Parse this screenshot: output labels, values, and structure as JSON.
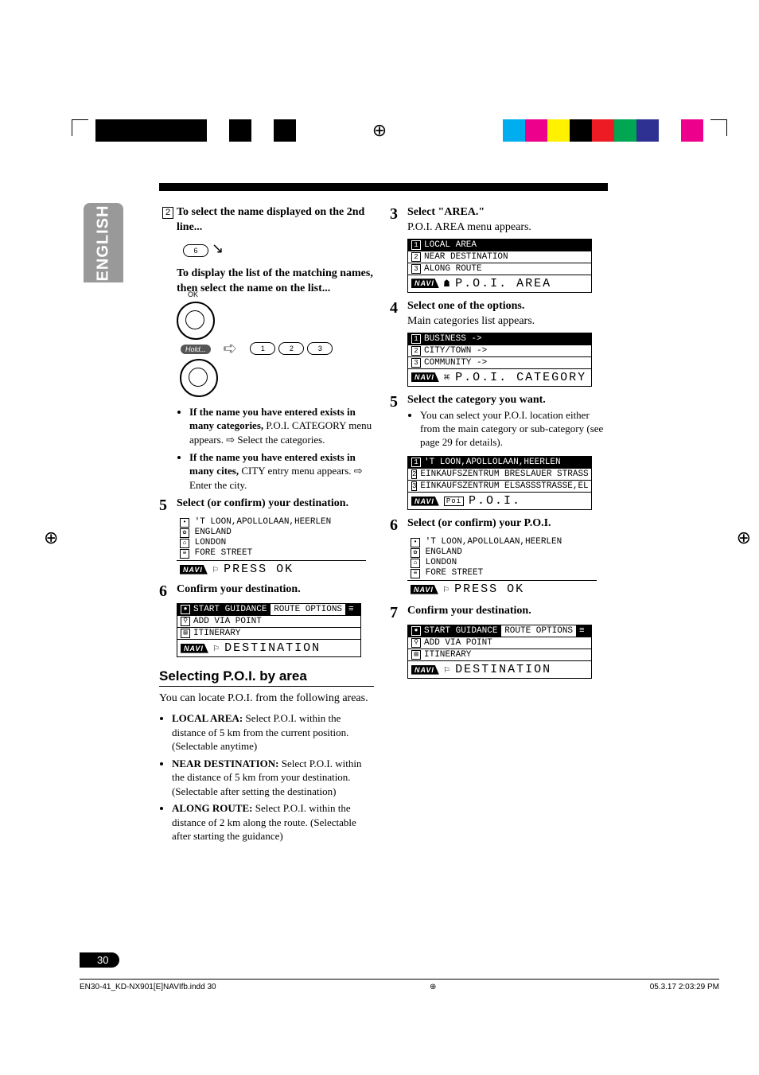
{
  "sideTab": "ENGLISH",
  "pageNumber": "30",
  "footer": {
    "file": "EN30-41_KD-NX901[E]NAVIfb.indd   30",
    "date": "05.3.17   2:03:29 PM"
  },
  "regColorsLeft": [
    "#000000",
    "#000000",
    "#000000",
    "#000000",
    "#000000",
    "#ffffff",
    "#000000",
    "#ffffff",
    "#000000"
  ],
  "regColorsRight": [
    "#00aeef",
    "#ec008c",
    "#fff200",
    "#000000",
    "#ed1c24",
    "#00a651",
    "#2e3192",
    "#ffffff",
    "#ec008c"
  ],
  "left": {
    "boxNum": "2",
    "line2a": "To select the name displayed on the 2nd line...",
    "btn6": "6",
    "line2b": "To display the list of the matching names, then select the name on the list...",
    "knobOK": "OK",
    "hold": "Hold...",
    "btn1": "1",
    "btn2": "2",
    "btn3": "3",
    "bullet1a": "If the name you have entered exists in many categories,",
    "bullet1b": " P.O.I. CATEGORY menu appears. ",
    "bullet1c": " Select the categories.",
    "bullet2a": "If the name you have entered exists in many cites,",
    "bullet2b": " CITY entry menu appears. ",
    "bullet2c": " Enter the city.",
    "step5": "Select (or confirm) your destination.",
    "lcd5": {
      "r1": "'T LOON,APOLLOLAAN,HEERLEN",
      "r2": "ENGLAND",
      "r3": "LONDON",
      "r4": "FORE STREET",
      "footer": "PRESS OK"
    },
    "step6": "Confirm your destination.",
    "dest": {
      "r1a": "START GUIDANCE",
      "r1b": "ROUTE OPTIONS",
      "r2": "ADD VIA POINT",
      "r3": "ITINERARY",
      "footer": "DESTINATION"
    },
    "sectionHeading": "Selecting P.O.I. by area",
    "sectionIntro": "You can locate P.O.I. from the following areas.",
    "areaBullets": {
      "b1t": "LOCAL AREA:",
      "b1": " Select P.O.I. within the distance of 5 km from the current position. (Selectable anytime)",
      "b2t": "NEAR DESTINATION:",
      "b2": " Select P.O.I. within the distance of 5 km from your destination. (Selectable after setting the destination)",
      "b3t": "ALONG ROUTE:",
      "b3": " Select P.O.I. within the distance of 2 km along the route. (Selectable after starting the guidance)"
    }
  },
  "right": {
    "step3a": "Select \"AREA.\"",
    "step3b": "P.O.I. AREA menu appears.",
    "lcd3": {
      "r1": "LOCAL AREA",
      "r2": "NEAR DESTINATION",
      "r3": "ALONG ROUTE",
      "footer": "P.O.I. AREA"
    },
    "step4a": "Select one of the options.",
    "step4b": "Main categories list appears.",
    "lcd4": {
      "r1": "BUSINESS ->",
      "r2": "CITY/TOWN ->",
      "r3": "COMMUNITY ->",
      "footer": "P.O.I. CATEGORY"
    },
    "step5a": "Select the category you want.",
    "step5b": "You can select your P.O.I. location either from the main category or sub-category (see page 29 for details).",
    "lcd5": {
      "r1": "'T LOON,APOLLOLAAN,HEERLEN",
      "r2": "EINKAUFSZENTRUM BRESLAUER STRASS",
      "r3": "EINKAUFSZENTRUM ELSASSSTRASSE,EL",
      "footer": "P.O.I."
    },
    "step6": "Select (or confirm) your P.O.I.",
    "lcd6": {
      "r1": "'T LOON,APOLLOLAAN,HEERLEN",
      "r2": "ENGLAND",
      "r3": "LONDON",
      "r4": "FORE STREET",
      "footer": "PRESS OK"
    },
    "step7": "Confirm your destination.",
    "dest": {
      "r1a": "START GUIDANCE",
      "r1b": "ROUTE OPTIONS",
      "r2": "ADD VIA POINT",
      "r3": "ITINERARY",
      "footer": "DESTINATION"
    }
  },
  "navi": "NAVI",
  "poiIcon": "Poi"
}
